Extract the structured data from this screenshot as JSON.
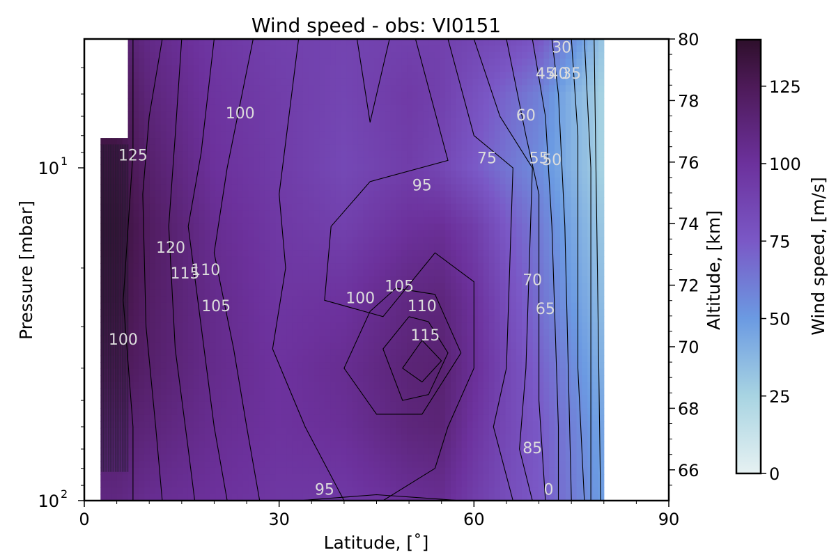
{
  "chart_data": {
    "type": "heatmap",
    "title": "Wind speed - obs: VI0151",
    "xlabel": "Latitude, [$^{\\circ}$]",
    "xlabel_display": "Latitude, [˚]",
    "ylabel_left": "Pressure [mbar]",
    "ylabel_right": "Altitude, [km]",
    "colorbar_label": "Wind speed, [m/s]",
    "xlim": [
      0,
      90
    ],
    "x_ticks": [
      0,
      30,
      60,
      90
    ],
    "y_left_scale": "log",
    "y_left_range_mbar": [
      100,
      4.1
    ],
    "y_left_ticks": [
      {
        "value": 10,
        "base": "10",
        "exp": "1"
      },
      {
        "value": 100,
        "base": "10",
        "exp": "2"
      }
    ],
    "y_right_range_km": [
      65,
      80
    ],
    "y_right_ticks": [
      66,
      68,
      70,
      72,
      74,
      76,
      78,
      80
    ],
    "colorbar_range": [
      0,
      140
    ],
    "colorbar_ticks": [
      0,
      25,
      50,
      75,
      100,
      125
    ],
    "colormap_stops": [
      {
        "value": 0,
        "color": "#e6f1f2"
      },
      {
        "value": 25,
        "color": "#a8d4e2"
      },
      {
        "value": 50,
        "color": "#6b9ae2"
      },
      {
        "value": 75,
        "color": "#7a58c6"
      },
      {
        "value": 100,
        "color": "#6c319c"
      },
      {
        "value": 125,
        "color": "#4d1a58"
      },
      {
        "value": 140,
        "color": "#2e0f2b"
      }
    ],
    "data_coverage_latitude": [
      2.5,
      80
    ],
    "wind_grid": {
      "latitudes": [
        5,
        10,
        20,
        30,
        40,
        50,
        55,
        60,
        65,
        70,
        75,
        80
      ],
      "pressures_mbar": [
        4.2,
        6,
        10,
        15,
        25,
        40,
        60,
        100
      ],
      "values": [
        [
          120,
          108,
          96,
          90,
          88,
          90,
          90,
          86,
          82,
          75,
          55,
          30
        ],
        [
          128,
          112,
          98,
          92,
          87,
          94,
          90,
          80,
          70,
          60,
          40,
          25
        ],
        [
          132,
          118,
          100,
          93,
          85,
          92,
          86,
          75,
          64,
          55,
          40,
          25
        ],
        [
          135,
          122,
          104,
          95,
          90,
          100,
          102,
          92,
          75,
          62,
          45,
          30
        ],
        [
          132,
          120,
          106,
          97,
          99,
          110,
          112,
          100,
          82,
          66,
          50,
          35
        ],
        [
          126,
          118,
          106,
          99,
          104,
          114,
          116,
          102,
          86,
          72,
          56,
          40
        ],
        [
          118,
          113,
          104,
          99,
          102,
          112,
          114,
          98,
          85,
          75,
          60,
          45
        ],
        [
          110,
          104,
          100,
          96,
          95,
          102,
          104,
          92,
          82,
          75,
          62,
          48
        ]
      ]
    },
    "contour_labels": [
      {
        "text": "100",
        "lat": 24,
        "p": 7.1
      },
      {
        "text": "125",
        "lat": 7.5,
        "p": 9.5
      },
      {
        "text": "95",
        "lat": 52,
        "p": 11.7
      },
      {
        "text": "75",
        "lat": 62,
        "p": 9.7
      },
      {
        "text": "60",
        "lat": 68,
        "p": 7.2
      },
      {
        "text": "55",
        "lat": 70,
        "p": 9.7
      },
      {
        "text": "50",
        "lat": 72,
        "p": 9.8
      },
      {
        "text": "45",
        "lat": 71,
        "p": 5.4
      },
      {
        "text": "40",
        "lat": 73,
        "p": 5.4
      },
      {
        "text": "35",
        "lat": 75,
        "p": 5.4
      },
      {
        "text": "30",
        "lat": 73.5,
        "p": 4.5
      },
      {
        "text": "120",
        "lat": 13.3,
        "p": 18
      },
      {
        "text": "115",
        "lat": 15.5,
        "p": 21.5
      },
      {
        "text": "110",
        "lat": 18.7,
        "p": 21
      },
      {
        "text": "105",
        "lat": 20.3,
        "p": 27
      },
      {
        "text": "100",
        "lat": 42.5,
        "p": 25.5
      },
      {
        "text": "105",
        "lat": 48.5,
        "p": 23.5
      },
      {
        "text": "110",
        "lat": 52,
        "p": 27
      },
      {
        "text": "115",
        "lat": 52.5,
        "p": 33
      },
      {
        "text": "100",
        "lat": 6,
        "p": 34
      },
      {
        "text": "70",
        "lat": 69,
        "p": 22.5
      },
      {
        "text": "65",
        "lat": 71,
        "p": 27.5
      },
      {
        "text": "85",
        "lat": 69,
        "p": 72
      },
      {
        "text": "95",
        "lat": 37,
        "p": 96
      },
      {
        "text": "0",
        "lat": 71.5,
        "p": 96
      }
    ],
    "grid": false,
    "legend": "none"
  }
}
